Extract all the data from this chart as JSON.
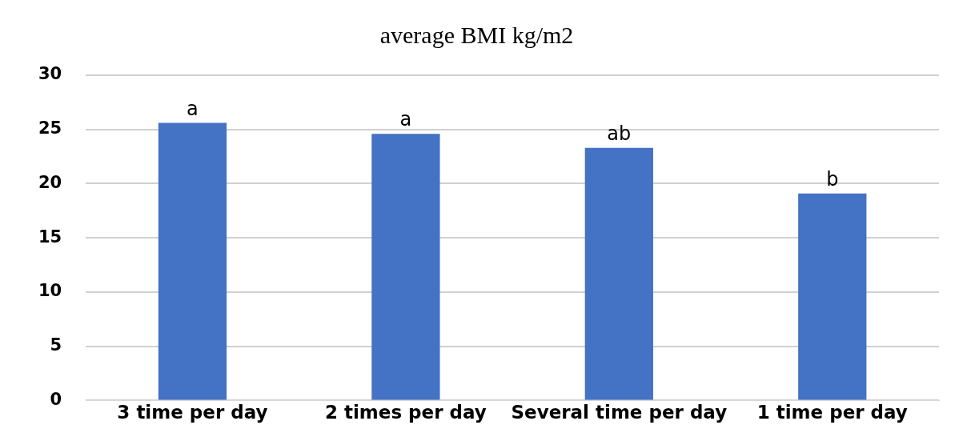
{
  "chart_data": {
    "type": "bar",
    "title": "average BMI kg/m2",
    "categories": [
      "3 time per day",
      "2 times per day",
      "Several time per day",
      "1 time per day"
    ],
    "values": [
      25.6,
      24.6,
      23.3,
      19.1
    ],
    "value_labels": [
      "a",
      "a",
      "ab",
      "b"
    ],
    "color": "#4472c4",
    "ylim": [
      0,
      30
    ],
    "yticks": [
      0,
      5,
      10,
      15,
      20,
      25,
      30
    ],
    "grid": "y"
  }
}
